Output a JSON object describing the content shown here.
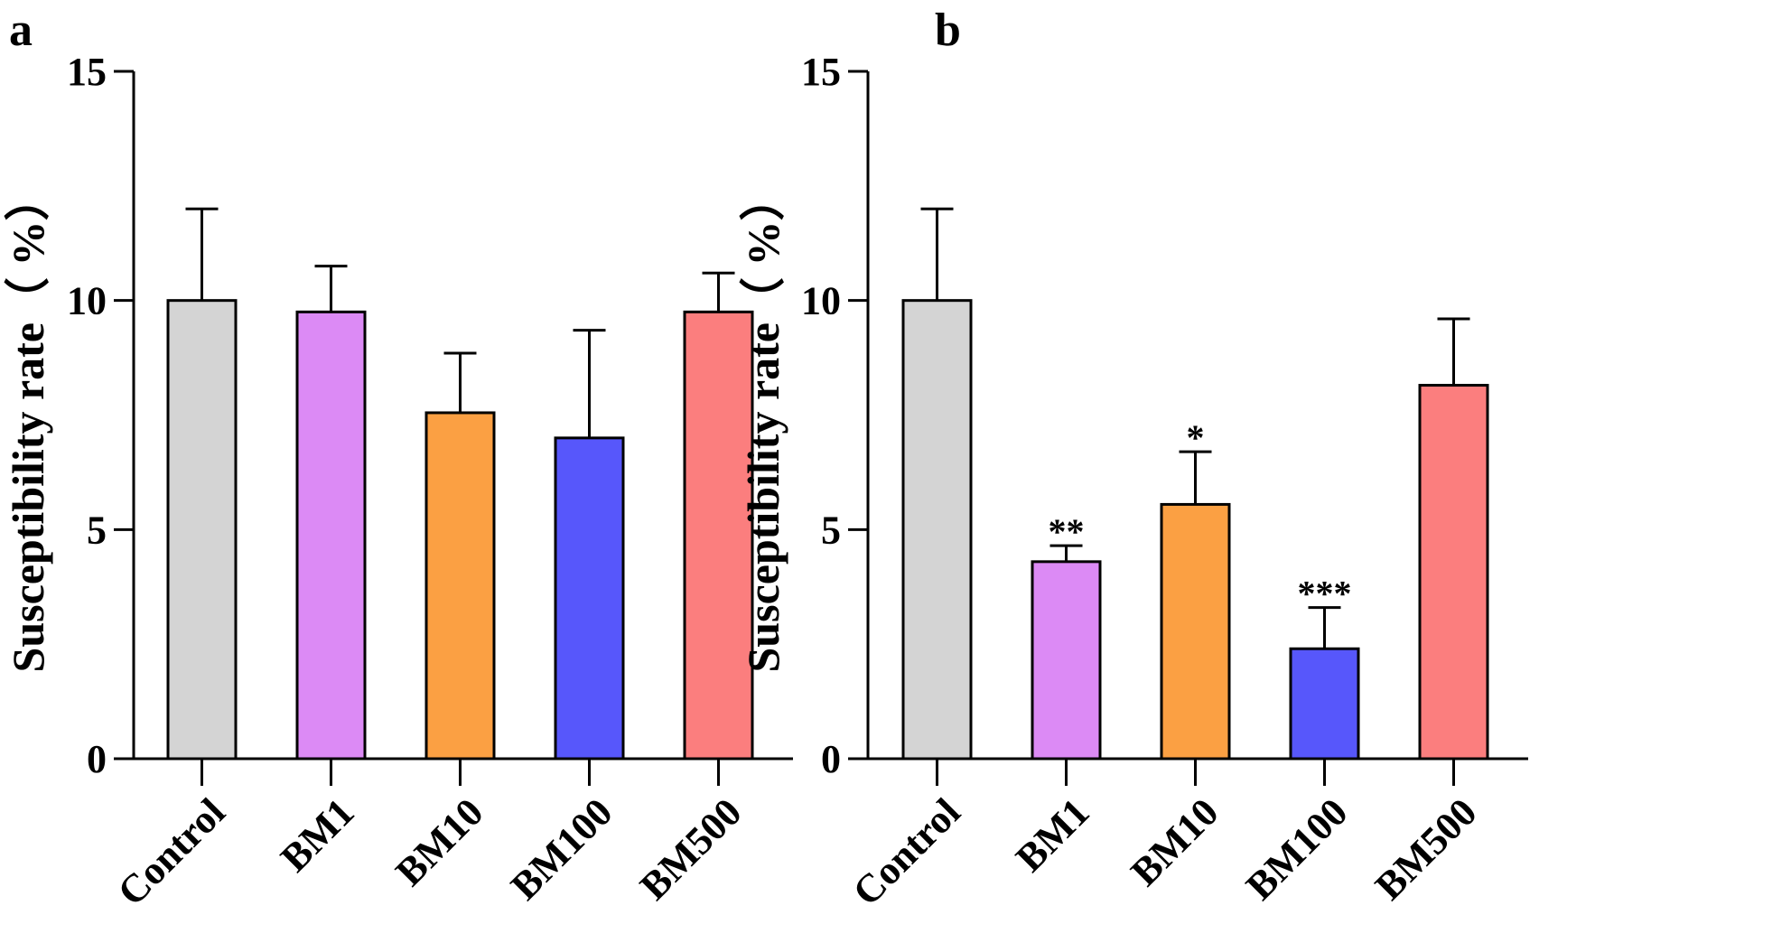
{
  "chart_data": [
    {
      "type": "bar",
      "panel": "a",
      "title": "",
      "xlabel": "",
      "ylabel": "Susceptibility rate（ %）",
      "ylim": [
        0,
        15
      ],
      "yticks": [
        0,
        5,
        10,
        15
      ],
      "categories": [
        "Control",
        "BM1",
        "BM10",
        "BM100",
        "BM500"
      ],
      "values": [
        10.0,
        9.75,
        7.55,
        7.0,
        9.75
      ],
      "errors": [
        2.0,
        1.0,
        1.3,
        2.35,
        0.85
      ],
      "significance": [
        "",
        "",
        "",
        "",
        ""
      ],
      "colors": [
        "#D4D4D4",
        "#DC8AF5",
        "#FBA043",
        "#5757FB",
        "#FB7E7E"
      ]
    },
    {
      "type": "bar",
      "panel": "b",
      "title": "",
      "xlabel": "",
      "ylabel": "Susceptibility rate（ %）",
      "ylim": [
        0,
        15
      ],
      "yticks": [
        0,
        5,
        10,
        15
      ],
      "categories": [
        "Control",
        "BM1",
        "BM10",
        "BM100",
        "BM500"
      ],
      "values": [
        10.0,
        4.3,
        5.55,
        2.4,
        8.15
      ],
      "errors": [
        2.0,
        0.35,
        1.15,
        0.9,
        1.45
      ],
      "significance": [
        "",
        "**",
        "*",
        "***",
        ""
      ],
      "colors": [
        "#D4D4D4",
        "#DC8AF5",
        "#FBA043",
        "#5757FB",
        "#FB7E7E"
      ]
    }
  ]
}
